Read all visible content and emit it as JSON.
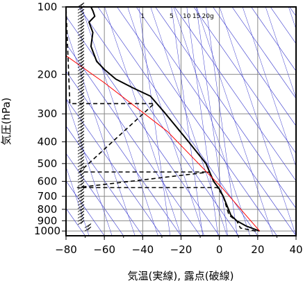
{
  "chart_data": {
    "type": "line",
    "chart_kind": "skew-T log-p sounding (emagram)",
    "xlabel": "気温(実線), 露点(破線)",
    "ylabel": "気圧(hPa)",
    "xlim": [
      -80,
      40
    ],
    "ylim": [
      1050,
      100
    ],
    "y_scale": "log",
    "x_ticks": [
      -80,
      -60,
      -40,
      -20,
      0,
      20,
      40
    ],
    "x_tick_labels": [
      "−80",
      "−60",
      "−40",
      "−20",
      "0",
      "20",
      "40"
    ],
    "y_ticks": [
      100,
      200,
      300,
      400,
      500,
      600,
      700,
      800,
      900,
      1000
    ],
    "y_tick_labels": [
      "100",
      "200",
      "300",
      "400",
      "500",
      "600",
      "700",
      "800",
      "900",
      "1000"
    ],
    "mixing_ratio_labels": [
      "1",
      "5",
      "10",
      "15",
      "20g"
    ],
    "mixing_ratio_values": [
      1,
      5,
      10,
      15,
      20
    ],
    "grid": true,
    "colors": {
      "temperature": "#000000",
      "dewpoint": "#000000",
      "parcel": "#ff0000",
      "adiabats": "#3333cc",
      "grid": "#888888"
    },
    "series": [
      {
        "role": "temperature",
        "style": "solid",
        "points": [
          [
            21,
            1000
          ],
          [
            14,
            950
          ],
          [
            9,
            900
          ],
          [
            6,
            850
          ],
          [
            2,
            700
          ],
          [
            0,
            650
          ],
          [
            -3,
            600
          ],
          [
            -7,
            500
          ],
          [
            -16,
            400
          ],
          [
            -28,
            300
          ],
          [
            -36,
            250
          ],
          [
            -45,
            230
          ],
          [
            -54,
            210
          ],
          [
            -60,
            190
          ],
          [
            -64,
            175
          ],
          [
            -67,
            150
          ],
          [
            -66,
            130
          ],
          [
            -68,
            117
          ],
          [
            -65,
            110
          ],
          [
            -66,
            104
          ],
          [
            -67,
            100
          ]
        ]
      },
      {
        "role": "dewpoint",
        "style": "dashed",
        "points": [
          [
            19,
            1000
          ],
          [
            11,
            970
          ],
          [
            9,
            900
          ],
          [
            5,
            850
          ],
          [
            2,
            700
          ],
          [
            -1,
            640
          ],
          [
            -74,
            640
          ],
          [
            -5,
            545
          ],
          [
            -73,
            545
          ],
          [
            -34,
            270
          ],
          [
            -78,
            270
          ],
          [
            -80,
            100
          ]
        ]
      },
      {
        "role": "parcel",
        "style": "solid",
        "points": [
          [
            21,
            1000
          ],
          [
            2,
            650
          ],
          [
            -27,
            360
          ],
          [
            -60,
            218
          ],
          [
            -80,
            165
          ]
        ]
      }
    ],
    "wind_barbs": "vertical column of wind barbs along the left edge from 1000 to 100 hPa"
  }
}
